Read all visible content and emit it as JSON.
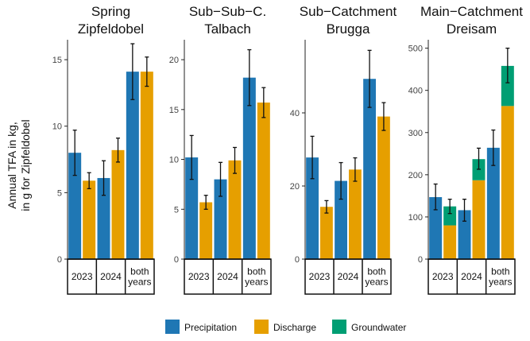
{
  "ylabel_line1": "Annual TFA in kg,",
  "ylabel_line2": "in g for Zipfeldobel",
  "legend": [
    {
      "key": "precip",
      "label": "Precipitation",
      "color": "#1f77b4"
    },
    {
      "key": "discharge",
      "label": "Discharge",
      "color": "#e69f00"
    },
    {
      "key": "groundwater",
      "label": "Groundwater",
      "color": "#009e73"
    }
  ],
  "colors": {
    "precipitation": "#1f77b4",
    "discharge": "#e69f00",
    "groundwater": "#009e73"
  },
  "chart_data": [
    {
      "type": "bar",
      "title": [
        "Spring",
        "Zipfeldobel"
      ],
      "ylim": [
        0,
        16.5
      ],
      "yticks": [
        0,
        5,
        10,
        15
      ],
      "categories": [
        "2023",
        "2024",
        "both|years"
      ],
      "groups": [
        {
          "precip": {
            "value": 8.0,
            "err": [
              6.3,
              9.7
            ]
          },
          "discharge": {
            "value": 5.9,
            "groundwater": 0,
            "err": [
              5.3,
              6.5
            ]
          }
        },
        {
          "precip": {
            "value": 6.1,
            "err": [
              4.8,
              7.4
            ]
          },
          "discharge": {
            "value": 8.2,
            "groundwater": 0,
            "err": [
              7.3,
              9.1
            ]
          }
        },
        {
          "precip": {
            "value": 14.1,
            "err": [
              12.0,
              16.2
            ]
          },
          "discharge": {
            "value": 14.1,
            "groundwater": 0,
            "err": [
              13.0,
              15.2
            ]
          }
        }
      ]
    },
    {
      "type": "bar",
      "title": [
        "Sub−Sub−C.",
        "Talbach"
      ],
      "ylim": [
        0,
        22
      ],
      "yticks": [
        0,
        5,
        10,
        15,
        20
      ],
      "categories": [
        "2023",
        "2024",
        "both|years"
      ],
      "groups": [
        {
          "precip": {
            "value": 10.2,
            "err": [
              8.0,
              12.4
            ]
          },
          "discharge": {
            "value": 5.7,
            "groundwater": 0,
            "err": [
              5.0,
              6.4
            ]
          }
        },
        {
          "precip": {
            "value": 8.0,
            "err": [
              6.3,
              9.7
            ]
          },
          "discharge": {
            "value": 9.9,
            "groundwater": 0,
            "err": [
              8.6,
              11.2
            ]
          }
        },
        {
          "precip": {
            "value": 18.2,
            "err": [
              15.4,
              21.0
            ]
          },
          "discharge": {
            "value": 15.7,
            "groundwater": 0,
            "err": [
              14.2,
              17.2
            ]
          }
        }
      ]
    },
    {
      "type": "bar",
      "title": [
        "Sub−Catchment",
        "Brugga"
      ],
      "ylim": [
        0,
        60
      ],
      "yticks": [
        0,
        20,
        40
      ],
      "categories": [
        "2023",
        "2024",
        "both|years"
      ],
      "groups": [
        {
          "precip": {
            "value": 27.8,
            "err": [
              22.0,
              33.6
            ]
          },
          "discharge": {
            "value": 14.3,
            "groundwater": 0,
            "err": [
              12.6,
              16.0
            ]
          }
        },
        {
          "precip": {
            "value": 21.4,
            "err": [
              16.4,
              26.4
            ]
          },
          "discharge": {
            "value": 24.5,
            "groundwater": 0,
            "err": [
              21.3,
              27.7
            ]
          }
        },
        {
          "precip": {
            "value": 49.3,
            "err": [
              41.5,
              57.1
            ]
          },
          "discharge": {
            "value": 39.0,
            "groundwater": 0,
            "err": [
              35.2,
              42.8
            ]
          }
        }
      ]
    },
    {
      "type": "bar",
      "title": [
        "Main−Catchment",
        "Dreisam"
      ],
      "ylim": [
        0,
        520
      ],
      "yticks": [
        0,
        100,
        200,
        300,
        400,
        500
      ],
      "categories": [
        "2023",
        "2024",
        "both|years"
      ],
      "groups": [
        {
          "precip": {
            "value": 147,
            "err": [
              117,
              178
            ]
          },
          "discharge": {
            "value": 80,
            "groundwater": 45,
            "err": [
              108,
              142
            ]
          }
        },
        {
          "precip": {
            "value": 116,
            "err": [
              90,
              142
            ]
          },
          "discharge": {
            "value": 187,
            "groundwater": 50,
            "err": [
              213,
              263
            ]
          }
        },
        {
          "precip": {
            "value": 264,
            "err": [
              222,
              306
            ]
          },
          "discharge": {
            "value": 363,
            "groundwater": 95,
            "err": [
              418,
              500
            ]
          }
        }
      ]
    }
  ]
}
